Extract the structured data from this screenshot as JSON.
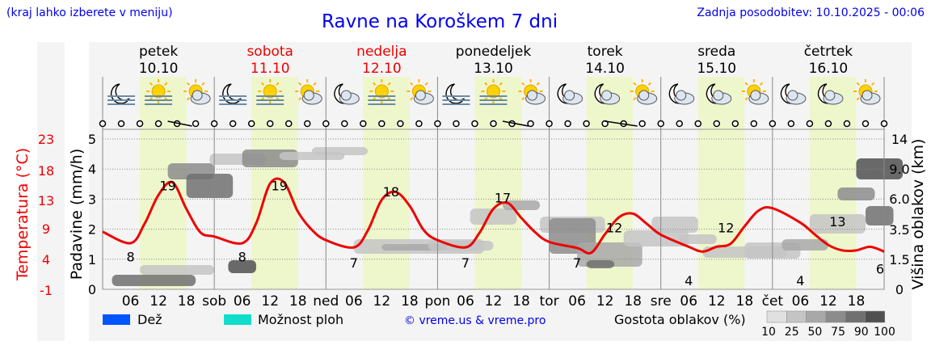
{
  "header": {
    "left_note": "(kraj lahko izberete v meniju)",
    "title": "Ravne na Koroškem 7 dni",
    "updated": "Zadnja posodobitev: 10.10.2025 - 00:06"
  },
  "colors": {
    "temperature_line": "#ee0000",
    "weekend_day_label": "#ee0000",
    "weekday_label": "#000000",
    "daylight_band": "#eef6cc",
    "panel_bg": "#f4f4f4",
    "rain_legend": "#0055ff",
    "showers_legend": "#11ddcc",
    "credit_link": "#0000ee"
  },
  "days": [
    {
      "name": "petek",
      "date": "10.10",
      "weekend": false,
      "icons": [
        "moon-fog-icon",
        "sun-fog-icon",
        "sun-cloud-icon"
      ]
    },
    {
      "name": "sobota",
      "date": "11.10",
      "weekend": true,
      "icons": [
        "moon-fog-icon",
        "sun-fog-icon",
        "sun-cloud-icon"
      ]
    },
    {
      "name": "nedelja",
      "date": "12.10",
      "weekend": true,
      "icons": [
        "moon-cloud-icon",
        "sun-fog-icon",
        "sun-cloud-icon"
      ]
    },
    {
      "name": "ponedeljek",
      "date": "13.10",
      "weekend": false,
      "icons": [
        "moon-fog-icon",
        "sun-fog-icon",
        "sun-cloud-icon"
      ]
    },
    {
      "name": "torek",
      "date": "14.10",
      "weekend": false,
      "icons": [
        "moon-cloud-icon",
        "moon-cloud-icon",
        "sun-cloud-icon"
      ]
    },
    {
      "name": "sreda",
      "date": "15.10",
      "weekend": false,
      "icons": [
        "moon-cloud-icon",
        "moon-cloud-icon",
        "sun-cloud-icon"
      ]
    },
    {
      "name": "četrtek",
      "date": "16.10",
      "weekend": false,
      "icons": [
        "moon-cloud-icon",
        "moon-cloud-icon",
        "sun-cloud-icon"
      ]
    }
  ],
  "chart_data": {
    "type": "line",
    "x_tick_labels": [
      "06",
      "12",
      "18",
      "sob",
      "06",
      "12",
      "18",
      "ned",
      "06",
      "12",
      "18",
      "pon",
      "06",
      "12",
      "18",
      "tor",
      "06",
      "12",
      "18",
      "sre",
      "06",
      "12",
      "18",
      "čet",
      "06",
      "12",
      "18"
    ],
    "temperature_axis_label": "Temperatura (°C)",
    "temperature_ticks": [
      23,
      18,
      13,
      9,
      4,
      -1
    ],
    "precip_axis_label": "Padavine (mm/h)",
    "precip_ticks": [
      0,
      1,
      2,
      3,
      4,
      5
    ],
    "precip_ylim": [
      0,
      5
    ],
    "cloud_axis_label": "Višina oblakov (km)",
    "cloud_height_ticks": [
      "0",
      "1.5",
      "3.5",
      "6.0",
      "9.0",
      "14"
    ],
    "grid": true,
    "series": [
      {
        "x_hours": [
          0,
          6,
          9,
          12,
          15,
          18,
          21,
          24,
          30,
          33,
          36,
          39,
          42,
          45,
          48,
          54,
          57,
          60,
          63,
          66,
          69,
          72,
          78,
          81,
          84,
          87,
          90,
          93,
          96,
          102,
          105,
          108,
          111,
          114,
          117,
          120,
          126,
          129,
          132,
          135,
          138,
          141,
          144,
          150,
          153,
          156,
          159,
          162,
          165,
          168
        ],
        "values": [
          9.7,
          7.8,
          11,
          15.8,
          17.9,
          13.5,
          9.6,
          8.9,
          7.8,
          11.1,
          17.7,
          17.9,
          13,
          10,
          8.3,
          7.1,
          9.9,
          15,
          16.3,
          14,
          10,
          8.3,
          7.1,
          9.5,
          13.5,
          14.5,
          12,
          9.6,
          8,
          7,
          6.2,
          9.3,
          12.1,
          12.7,
          11,
          9.2,
          7.2,
          6.4,
          7.2,
          7.7,
          10.6,
          13.2,
          13.6,
          11.2,
          9.3,
          7.5,
          6.6,
          6.6,
          7.2,
          6.4
        ]
      }
    ],
    "point_labels": [
      {
        "hour": 6,
        "text": "8"
      },
      {
        "hour": 14,
        "text": "19"
      },
      {
        "hour": 30,
        "text": "8"
      },
      {
        "hour": 38,
        "text": "19"
      },
      {
        "hour": 54,
        "text": "7"
      },
      {
        "hour": 62,
        "text": "18"
      },
      {
        "hour": 78,
        "text": "7"
      },
      {
        "hour": 86,
        "text": "17"
      },
      {
        "hour": 102,
        "text": "7"
      },
      {
        "hour": 110,
        "text": "12"
      },
      {
        "hour": 126,
        "text": "4"
      },
      {
        "hour": 134,
        "text": "12"
      },
      {
        "hour": 150,
        "text": "4"
      },
      {
        "hour": 158,
        "text": "13"
      },
      {
        "hour": 168,
        "text": "6"
      }
    ]
  },
  "legend": {
    "rain": "Dež",
    "showers": "Možnost ploh",
    "credit": "© vreme.us & vreme.pro",
    "cloud_density_title": "Gostota oblakov (%)",
    "cloud_density_levels": [
      "10",
      "25",
      "50",
      "75",
      "90",
      "100"
    ],
    "cloud_density_colors": [
      "#e0e0e0",
      "#c4c4c4",
      "#a8a8a8",
      "#8c8c8c",
      "#707070",
      "#505050"
    ]
  }
}
